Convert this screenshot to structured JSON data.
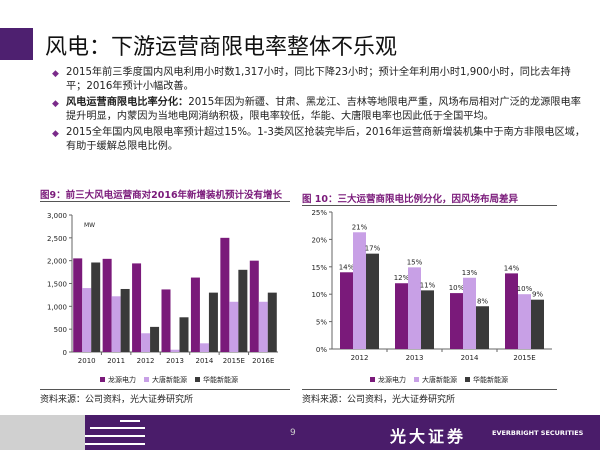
{
  "title": "风电：下游运营商限电率整体不乐观",
  "bullets": [
    {
      "bold": "",
      "text": "2015年前三季度国内风电利用小时数1,317小时，同比下降23小时；预计全年利用小时1,900小时，同比去年持平；2016年预计小幅改善。"
    },
    {
      "bold": "风电运营商限电比率分化：",
      "text": "2015年因为新疆、甘肃、黑龙江、吉林等地限电严重，风场布局相对广泛的龙源限电率提升明显，内蒙因为当地电网消纳积极，限电率较低，华能、大唐限电率也因此低于全国平均。"
    },
    {
      "bold": "",
      "text": "2015全年国内风电限电率预计超过15%。1-3类风区抢装完毕后，2016年运营商新增装机集中于南方非限电区域，有助于缓解总限电比例。"
    }
  ],
  "chart_data": [
    {
      "type": "bar",
      "title": "图9：前三大风电运营商对2016年新增装机预计没有增长",
      "unit": "MW",
      "categories": [
        "2010",
        "2011",
        "2012",
        "2013",
        "2014",
        "2015E",
        "2016E"
      ],
      "ylim": [
        0,
        3000
      ],
      "yticks": [
        "0",
        "500",
        "1,000",
        "1,500",
        "2,000",
        "2,500",
        "3,000"
      ],
      "ytick_values": [
        0,
        500,
        1000,
        1500,
        2000,
        2500,
        3000
      ],
      "series": [
        {
          "name": "龙源电力",
          "values": [
            2050,
            2040,
            1940,
            1370,
            1630,
            2500,
            2000
          ]
        },
        {
          "name": "大唐新能源",
          "values": [
            1400,
            1220,
            410,
            50,
            190,
            1100,
            1100
          ]
        },
        {
          "name": "华能新能源",
          "values": [
            1960,
            1380,
            550,
            760,
            1300,
            1800,
            1300
          ]
        }
      ],
      "legend": "bottom",
      "source": "资料来源：公司资料，光大证券研究所"
    },
    {
      "type": "bar",
      "title": "图 10：三大运营商限电比例分化，因风场布局差异",
      "categories": [
        "2012",
        "2013",
        "2014",
        "2015E"
      ],
      "ylim": [
        0,
        25
      ],
      "yticks": [
        "0%",
        "5%",
        "10%",
        "15%",
        "20%",
        "25%"
      ],
      "ytick_values": [
        0,
        5,
        10,
        15,
        20,
        25
      ],
      "series": [
        {
          "name": "龙源电力",
          "values": [
            14,
            12,
            10.2,
            13.8
          ],
          "labels": [
            "14%",
            "12%",
            "10%",
            "14%"
          ]
        },
        {
          "name": "大唐新能源",
          "values": [
            21.3,
            14.9,
            13,
            10
          ],
          "labels": [
            "21%",
            "15%",
            "13%",
            "10%"
          ]
        },
        {
          "name": "华能新能源",
          "values": [
            17.4,
            10.7,
            7.8,
            9
          ],
          "labels": [
            "17%",
            "11%",
            "8%",
            "9%"
          ]
        }
      ],
      "legend": "bottom",
      "source": "资料来源：公司资料，光大证券研究所"
    }
  ],
  "colors": {
    "series": [
      "#7a1a7a",
      "#c8a0e6",
      "#3a3a3a"
    ],
    "footer": "#4a1c6a"
  },
  "footer": {
    "page": "9",
    "brand_cn": "光大证券",
    "brand_en": "EVERBRIGHT SECURITIES"
  }
}
